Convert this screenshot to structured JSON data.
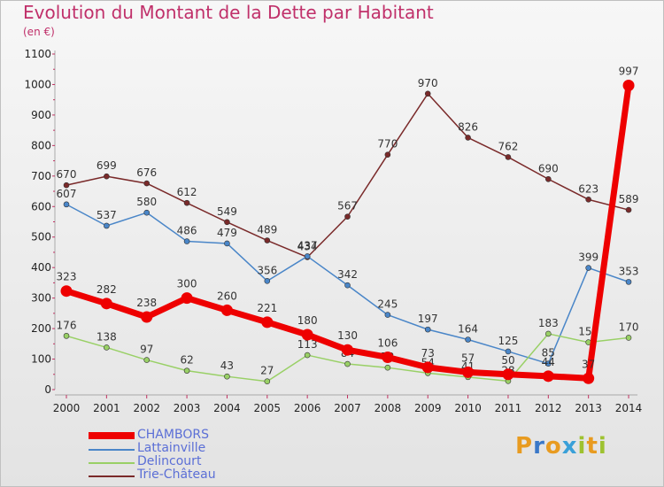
{
  "title": "Evolution du Montant de la Dette par Habitant",
  "unit": "(en €)",
  "brand": "Proxiti",
  "brand_letters": [
    {
      "ch": "P",
      "color": "#e89b20"
    },
    {
      "ch": "r",
      "color": "#3a78c8"
    },
    {
      "ch": "o",
      "color": "#e89b20"
    },
    {
      "ch": "x",
      "color": "#3aa0d8"
    },
    {
      "ch": "i",
      "color": "#9ec230"
    },
    {
      "ch": "t",
      "color": "#e89b20"
    },
    {
      "ch": "i",
      "color": "#9ec230"
    }
  ],
  "chart_data": {
    "type": "line",
    "categories": [
      "2000",
      "2001",
      "2002",
      "2003",
      "2004",
      "2005",
      "2006",
      "2007",
      "2008",
      "2009",
      "2010",
      "2011",
      "2012",
      "2013",
      "2014"
    ],
    "ylim": [
      0,
      1100
    ],
    "yticks": [
      0,
      100,
      200,
      300,
      400,
      500,
      600,
      700,
      800,
      900,
      1000,
      1100
    ],
    "grid": false,
    "legend_position": "bottom-left",
    "series": [
      {
        "name": "Trie-Château",
        "color": "#7a2a2a",
        "values": [
          670,
          699,
          676,
          612,
          549,
          489,
          434,
          567,
          770,
          970,
          826,
          762,
          690,
          623,
          589
        ]
      },
      {
        "name": "Lattainville",
        "color": "#4a86c8",
        "values": [
          607,
          537,
          580,
          486,
          479,
          356,
          437,
          342,
          245,
          197,
          164,
          125,
          85,
          399,
          353
        ]
      },
      {
        "name": "Delincourt",
        "color": "#99d066",
        "values": [
          176,
          138,
          97,
          62,
          43,
          27,
          113,
          84,
          72,
          54,
          41,
          28,
          183,
          155,
          170
        ]
      },
      {
        "name": "CHAMBORS",
        "color": "#ee0000",
        "values": [
          323,
          282,
          238,
          300,
          260,
          221,
          180,
          130,
          106,
          73,
          57,
          50,
          44,
          37,
          997
        ]
      }
    ]
  },
  "legend_order": [
    3,
    1,
    2,
    0
  ]
}
